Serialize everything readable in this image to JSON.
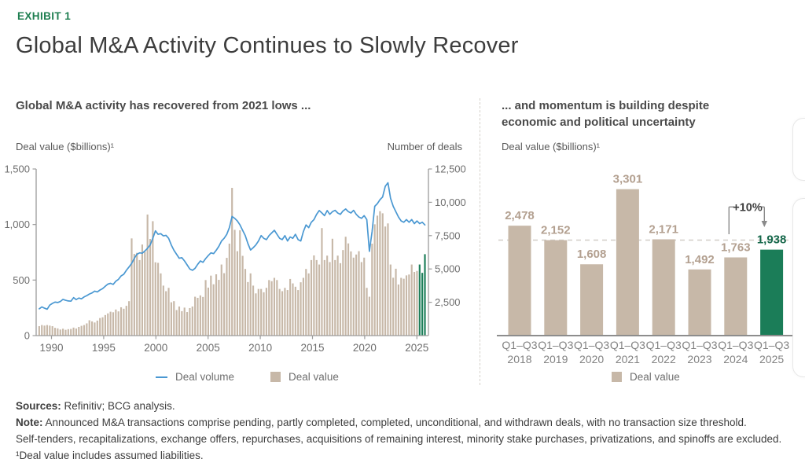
{
  "page": {
    "exhibit_label": "EXHIBIT 1",
    "title": "Global M&A Activity Continues to Slowly Recover"
  },
  "left_panel": {
    "subtitle": "Global M&A activity has recovered from 2021 lows ...",
    "y_left_label": "Deal value ($billions)¹",
    "y_right_label": "Number of deals",
    "legend_volume": "Deal volume",
    "legend_value": "Deal value"
  },
  "right_panel": {
    "subtitle_line1": "... and momentum is building despite",
    "subtitle_line2": "economic and political uncertainty",
    "y_label": "Deal value ($billions)¹",
    "legend_value": "Deal value"
  },
  "footer": {
    "sources_bold": "Sources:",
    "sources_text": " Refinitiv; BCG analysis.",
    "note_bold": "Note:",
    "note_text": " Announced M&A transactions comprise pending, partly completed, completed, unconditional, and withdrawn deals, with no transaction size threshold.",
    "note_line2": "Self-tenders, recapitalizations, exchange offers, repurchases, acquisitions of remaining interest, minority stake purchases, privatizations, and spinoffs are excluded.",
    "footnote": "¹Deal value includes assumed liabilities."
  },
  "colors": {
    "tan_bar": "#c7b8a8",
    "tan_label": "#b3a090",
    "green_bar": "#1b7d58",
    "green_label": "#15674a",
    "exhibit_green": "#1e7e50",
    "blue_line": "#4a98d2",
    "axis_gray": "#9c9c9c",
    "dark_axis": "#8d8d8d",
    "tick_text": "#6e6e6e",
    "dashed_ref": "#d2cec8",
    "annotation_text": "#3d3d3d"
  },
  "chart_data": [
    {
      "type": "bar",
      "title": "Global M&A activity has recovered from 2021 lows ...",
      "xlabel": "",
      "ylabel_left": "Deal value ($billions)¹",
      "ylabel_right": "Number of deals",
      "x_start": "1989Q1",
      "x_end": "2025Q3",
      "frequency": "quarterly",
      "ylim_left": [
        0,
        1500
      ],
      "ylim_right": [
        0,
        12500
      ],
      "y_left_ticks": [
        "0",
        "500",
        "1,000",
        "1,500"
      ],
      "y_right_ticks": [
        "2,500",
        "5,000",
        "7,500",
        "10,000",
        "12,500"
      ],
      "x_ticks": [
        "1990",
        "1995",
        "2000",
        "2005",
        "2010",
        "2015",
        "2020",
        "2025"
      ],
      "highlight_last_n": 3,
      "series": [
        {
          "name": "Deal value",
          "axis": "left",
          "kind": "bar",
          "values": [
            85,
            95,
            90,
            95,
            90,
            85,
            70,
            65,
            55,
            62,
            52,
            58,
            60,
            72,
            64,
            78,
            88,
            95,
            110,
            138,
            128,
            118,
            135,
            158,
            165,
            185,
            200,
            215,
            210,
            235,
            218,
            255,
            242,
            268,
            310,
            875,
            735,
            745,
            680,
            820,
            755,
            1090,
            870,
            1030,
            660,
            655,
            560,
            450,
            400,
            430,
            300,
            310,
            230,
            262,
            220,
            252,
            212,
            248,
            262,
            350,
            340,
            362,
            348,
            500,
            432,
            540,
            462,
            552,
            502,
            640,
            562,
            700,
            828,
            1330,
            952,
            760,
            948,
            718,
            600,
            482,
            560,
            450,
            380,
            420,
            420,
            390,
            430,
            500,
            490,
            520,
            500,
            420,
            400,
            430,
            410,
            510,
            470,
            440,
            410,
            480,
            520,
            600,
            560,
            680,
            722,
            680,
            640,
            968,
            680,
            720,
            662,
            872,
            680,
            720,
            652,
            770,
            890,
            830,
            758,
            702,
            730,
            760,
            662,
            702,
            430,
            350,
            828,
            1002,
            1080,
            1120,
            1101,
            982,
            1010,
            640,
            521,
            602,
            460,
            520,
            512,
            542,
            550,
            640,
            573,
            582,
            640,
            565,
            733
          ]
        },
        {
          "name": "Deal volume",
          "axis": "right",
          "kind": "line",
          "values": [
            2010,
            2150,
            2060,
            1980,
            2290,
            2420,
            2510,
            2480,
            2560,
            2720,
            2650,
            2600,
            2580,
            2850,
            2700,
            2820,
            2760,
            2900,
            3000,
            3120,
            3200,
            3340,
            3280,
            3420,
            3520,
            3700,
            3860,
            3920,
            3840,
            4080,
            4220,
            4480,
            4600,
            4900,
            5150,
            5420,
            5800,
            6100,
            6210,
            6180,
            6350,
            6550,
            6800,
            7300,
            7860,
            7600,
            7650,
            7480,
            7520,
            7300,
            6800,
            6400,
            6100,
            5800,
            5850,
            5600,
            5300,
            5000,
            4900,
            5050,
            5350,
            5600,
            5500,
            5780,
            6000,
            6210,
            6150,
            6400,
            6700,
            7100,
            7300,
            7600,
            8100,
            8940,
            8800,
            8600,
            8300,
            7900,
            7500,
            6900,
            6420,
            6600,
            6800,
            7100,
            7505,
            7300,
            7200,
            7500,
            7700,
            7900,
            7600,
            7300,
            7200,
            7500,
            7100,
            7400,
            7300,
            7600,
            7200,
            7100,
            7800,
            8300,
            8100,
            8500,
            8700,
            9100,
            9380,
            9200,
            9000,
            9380,
            9100,
            9300,
            9400,
            9200,
            9100,
            9350,
            9500,
            9300,
            9200,
            9400,
            9100,
            8900,
            8800,
            9000,
            8700,
            6320,
            7800,
            9700,
            9900,
            10200,
            10400,
            11200,
            11470,
            10300,
            9700,
            9300,
            8900,
            8600,
            8500,
            8700,
            8500,
            8700,
            8400,
            8600,
            8400,
            8500,
            8300
          ]
        }
      ]
    },
    {
      "type": "bar",
      "title": "... and momentum is building despite economic and political uncertainty",
      "ylabel": "Deal value ($billions)¹",
      "period_label": "Q1–Q3",
      "categories": [
        "2018",
        "2019",
        "2020",
        "2021",
        "2022",
        "2023",
        "2024",
        "2025"
      ],
      "values": [
        2478,
        2152,
        1608,
        3301,
        2171,
        1492,
        1763,
        1938
      ],
      "value_labels": [
        "2,478",
        "2,152",
        "1,608",
        "3,301",
        "2,171",
        "1,492",
        "1,763",
        "1,938"
      ],
      "highlight_index": 7,
      "reference_line_value": 2153,
      "annotation": {
        "text": "+10%",
        "from_category": "2024",
        "to_category": "2025"
      },
      "legend": "Deal value",
      "ylim": [
        0,
        3600
      ],
      "grid": false
    }
  ]
}
